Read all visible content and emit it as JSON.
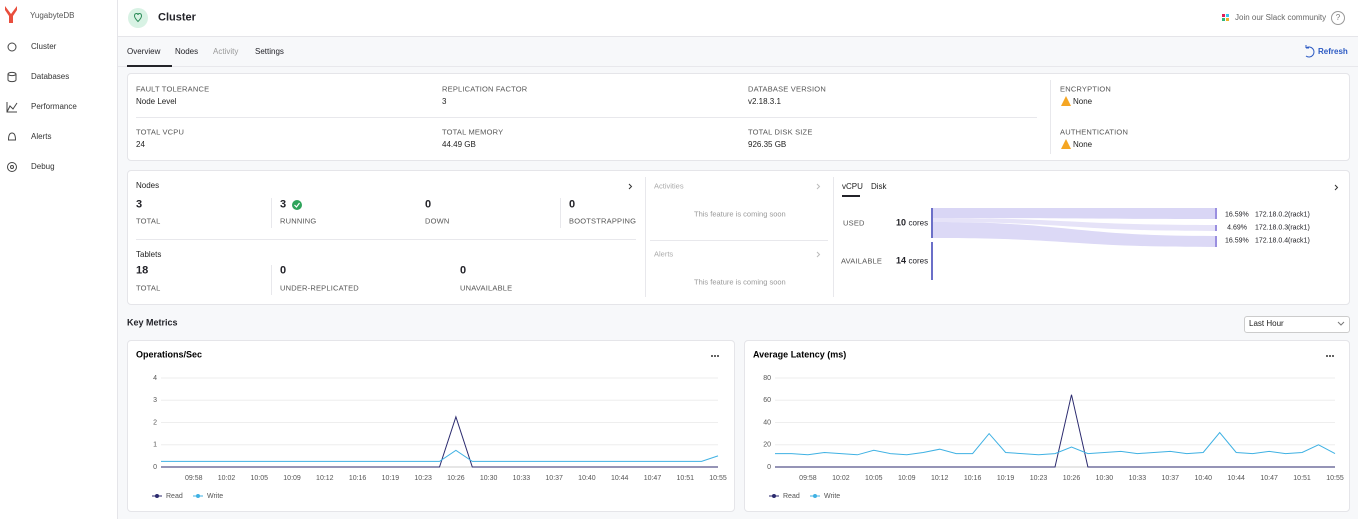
{
  "sidebar": {
    "brand": "YugabyteDB",
    "items": [
      "Cluster",
      "Databases",
      "Performance",
      "Alerts",
      "Debug"
    ]
  },
  "header": {
    "title": "Cluster",
    "slack": "Join our Slack community",
    "help": "?"
  },
  "tabs": [
    "Overview",
    "Nodes",
    "Activity",
    "Settings"
  ],
  "refresh": "Refresh",
  "info": [
    {
      "label": "FAULT TOLERANCE",
      "value": "Node Level"
    },
    {
      "label": "REPLICATION FACTOR",
      "value": 3
    },
    {
      "label": "DATABASE VERSION",
      "value": "v2.18.3.1"
    },
    {
      "label": "ENCRYPTION",
      "value": "None"
    },
    {
      "label": "TOTAL VCPU",
      "value": 24
    },
    {
      "label": "TOTAL MEMORY",
      "value": "44.49 GB"
    },
    {
      "label": "TOTAL DISK SIZE",
      "value": "926.35 GB"
    },
    {
      "label": "AUTHENTICATION",
      "value": "None"
    }
  ],
  "nodes": {
    "title": "Nodes",
    "stats": [
      {
        "value": 3,
        "label": "TOTAL"
      },
      {
        "value": 3,
        "label": "RUNNING"
      },
      {
        "value": 0,
        "label": "DOWN"
      },
      {
        "value": 0,
        "label": "BOOTSTRAPPING"
      }
    ]
  },
  "tablets": {
    "title": "Tablets",
    "stats": [
      {
        "value": 18,
        "label": "TOTAL"
      },
      {
        "value": 0,
        "label": "UNDER-REPLICATED"
      },
      {
        "value": 0,
        "label": "UNAVAILABLE"
      }
    ]
  },
  "activities": {
    "title": "Activities",
    "message": "This feature is coming soon"
  },
  "alerts": {
    "title": "Alerts",
    "message": "This feature is coming soon"
  },
  "vcpu": {
    "tabs": [
      "vCPU",
      "Disk"
    ],
    "used": {
      "label": "USED",
      "value": 10,
      "unit": "cores"
    },
    "available": {
      "label": "AVAILABLE",
      "value": 14,
      "unit": "cores"
    },
    "nodes": [
      {
        "pct": "16.59%",
        "ip": "172.18.0.2",
        "rack": "(rack1)"
      },
      {
        "pct": "4.69%",
        "ip": "172.18.0.3",
        "rack": "(rack1)"
      },
      {
        "pct": "16.59%",
        "ip": "172.18.0.4",
        "rack": "(rack1)"
      }
    ]
  },
  "key_metrics": {
    "title": "Key Metrics",
    "range": "Last Hour"
  },
  "charts": [
    {
      "type": "line",
      "title": "Operations/Sec",
      "categories": [
        null,
        null,
        "09:58",
        null,
        "10:02",
        null,
        "10:05",
        null,
        "10:09",
        null,
        "10:12",
        null,
        "10:16",
        null,
        "10:19",
        null,
        "10:23",
        null,
        "10:26",
        null,
        "10:30",
        null,
        "10:33",
        null,
        "10:37",
        null,
        "10:40",
        null,
        "10:44",
        null,
        "10:47",
        null,
        "10:51",
        null,
        "10:55"
      ],
      "ylim": [
        0,
        4
      ],
      "yticks": [
        0,
        1,
        2,
        3,
        4
      ],
      "grid": true,
      "series": [
        {
          "name": "Read",
          "color": "#2b2a6e",
          "values": [
            0,
            0,
            0,
            0,
            0,
            0,
            0,
            0,
            0,
            0,
            0,
            0,
            0,
            0,
            0,
            0,
            0,
            0,
            2.25,
            0,
            0,
            0,
            0,
            0,
            0,
            0,
            0,
            0,
            0,
            0,
            0,
            0,
            0,
            0,
            0
          ]
        },
        {
          "name": "Write",
          "color": "#3fb1e3",
          "values": [
            0.25,
            0.25,
            0.25,
            0.25,
            0.25,
            0.25,
            0.25,
            0.25,
            0.25,
            0.25,
            0.25,
            0.25,
            0.25,
            0.25,
            0.25,
            0.25,
            0.25,
            0.25,
            0.75,
            0.25,
            0.25,
            0.25,
            0.25,
            0.25,
            0.25,
            0.25,
            0.25,
            0.25,
            0.25,
            0.25,
            0.25,
            0.25,
            0.25,
            0.25,
            0.5
          ]
        }
      ]
    },
    {
      "type": "line",
      "title": "Average Latency (ms)",
      "categories": [
        null,
        null,
        "09:58",
        null,
        "10:02",
        null,
        "10:05",
        null,
        "10:09",
        null,
        "10:12",
        null,
        "10:16",
        null,
        "10:19",
        null,
        "10:23",
        null,
        "10:26",
        null,
        "10:30",
        null,
        "10:33",
        null,
        "10:37",
        null,
        "10:40",
        null,
        "10:44",
        null,
        "10:47",
        null,
        "10:51",
        null,
        "10:55"
      ],
      "ylim": [
        0,
        80
      ],
      "yticks": [
        0,
        20,
        40,
        60,
        80
      ],
      "grid": true,
      "series": [
        {
          "name": "Read",
          "color": "#2b2a6e",
          "values": [
            0,
            0,
            0,
            0,
            0,
            0,
            0,
            0,
            0,
            0,
            0,
            0,
            0,
            0,
            0,
            0,
            0,
            0,
            65,
            0,
            0,
            0,
            0,
            0,
            0,
            0,
            0,
            0,
            0,
            0,
            0,
            0,
            0,
            0,
            0
          ]
        },
        {
          "name": "Write",
          "color": "#3fb1e3",
          "values": [
            12,
            12,
            11,
            13,
            12,
            11,
            15,
            12,
            11,
            13,
            16,
            12,
            12,
            30,
            13,
            12,
            11,
            12,
            18,
            12,
            13,
            14,
            12,
            13,
            14,
            12,
            13,
            31,
            13,
            12,
            14,
            12,
            13,
            20,
            12
          ]
        }
      ]
    }
  ]
}
